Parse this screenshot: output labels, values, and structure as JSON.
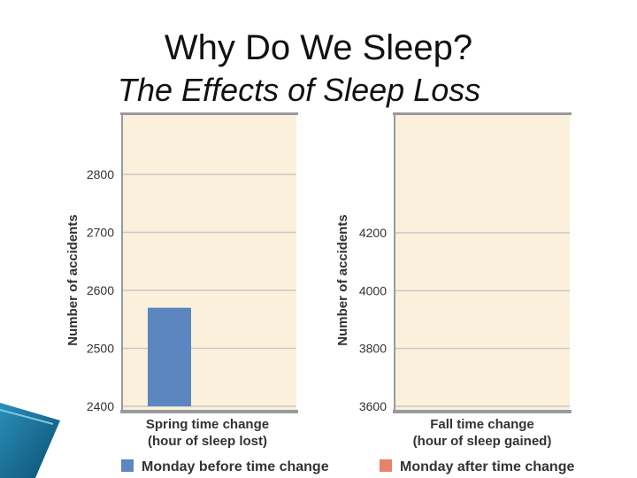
{
  "slide": {
    "title": "Why Do We Sleep?",
    "subtitle": "The Effects of Sleep Loss"
  },
  "colors": {
    "plot_bg": "#fbf0dc",
    "grid": "#c8c8c8",
    "before": "#5b86bf",
    "after": "#e8826a",
    "axis": "#9a9a9a"
  },
  "chart_data": [
    {
      "type": "bar",
      "ylabel": "Number of accidents",
      "xlabel_lines": [
        "Spring time change",
        "(hour of sleep lost)"
      ],
      "yticks": [
        2400,
        2500,
        2600,
        2700,
        2800
      ],
      "ylim": [
        2400,
        2880
      ],
      "series": [
        {
          "name": "Monday before time change",
          "values": [
            2570
          ]
        }
      ]
    },
    {
      "type": "bar",
      "ylabel": "Number of accidents",
      "xlabel_lines": [
        "Fall time change",
        "(hour of sleep gained)"
      ],
      "yticks": [
        3600,
        3800,
        4000,
        4200
      ],
      "ylim": [
        3600,
        4600
      ],
      "series": []
    }
  ],
  "legend": [
    {
      "label": "Monday before time change",
      "color_key": "before"
    },
    {
      "label": "Monday after time change",
      "color_key": "after"
    }
  ]
}
